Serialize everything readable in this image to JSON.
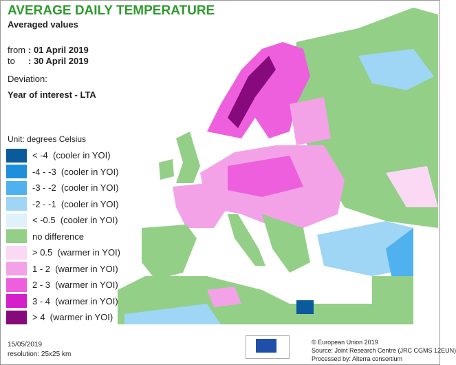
{
  "header": {
    "title": "AVERAGE DAILY TEMPERATURE",
    "subtitle": "Averaged values",
    "from_label": "from",
    "from_date": ": 01 April 2019",
    "to_label": "to",
    "to_date": ": 30 April 2019",
    "deviation_label": "Deviation:",
    "deviation_value": "Year of interest - LTA"
  },
  "legend": {
    "title": "Unit: degrees Celsius",
    "items": [
      {
        "label": "< -4  (cooler in YOI)",
        "color": "#0a5a9c"
      },
      {
        "label": "-4 - -3  (cooler in YOI)",
        "color": "#1f8fdc"
      },
      {
        "label": "-3 - -2  (cooler in YOI)",
        "color": "#4fb2ee"
      },
      {
        "label": "-2 - -1  (cooler in YOI)",
        "color": "#9fd5f5"
      },
      {
        "label": "< -0.5  (cooler in YOI)",
        "color": "#dff1fb"
      },
      {
        "label": "no difference",
        "color": "#93cf87"
      },
      {
        "label": "> 0.5  (warmer in YOI)",
        "color": "#fbd9f5"
      },
      {
        "label": "1 - 2  (warmer in YOI)",
        "color": "#f4a2e7"
      },
      {
        "label": "2 - 3  (warmer in YOI)",
        "color": "#ee5fde"
      },
      {
        "label": "3 - 4  (warmer in YOI)",
        "color": "#d41fcb"
      },
      {
        "label": "> 4  (warmer in YOI)",
        "color": "#870a7c"
      }
    ]
  },
  "footer": {
    "date": "15/05/2019",
    "resolution": "resolution: 25x25 km",
    "copyright": "© European Union 2019",
    "source": "Source: Joint Research Centre (JRC CGMS 12EUN)",
    "processed": "Processed by: Alterra consortium"
  }
}
